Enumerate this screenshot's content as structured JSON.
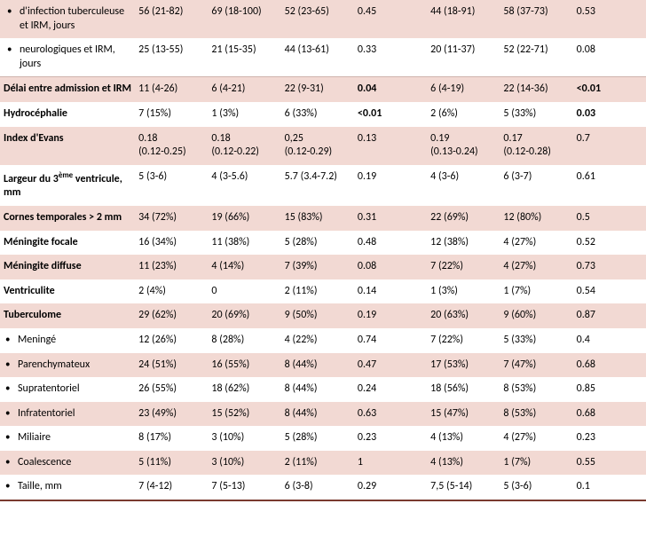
{
  "rows": [
    {
      "label": "d'infection tuberculeuse et IRM, jours",
      "bullet": true,
      "sub": true,
      "bold": false,
      "bg": "peach",
      "cells": [
        "56 (21-82)",
        "69 (18-100)",
        "52 (23-65)",
        "0.45",
        "44 (18-91)",
        "58 (37-73)",
        "0.53"
      ],
      "boldCells": []
    },
    {
      "label": "neurologiques et IRM, jours",
      "bullet": true,
      "sub": true,
      "bold": false,
      "bg": "white",
      "cells": [
        "25 (13-55)",
        "21 (15-35)",
        "44 (13-61)",
        "0.33",
        "20 (11-37)",
        "52 (22-71)",
        "0.08"
      ],
      "boldCells": []
    },
    {
      "label": "Délai entre admission et IRM",
      "bullet": false,
      "sub": false,
      "bold": true,
      "bg": "peach",
      "cells": [
        "11 (4-26)",
        "6 (4-21)",
        "22 (9-31)",
        "0.04",
        "6 (4-19)",
        "22 (14-36)",
        "<0.01"
      ],
      "boldCells": [
        3,
        6
      ],
      "sep": true
    },
    {
      "label": "Hydrocéphalie",
      "bullet": false,
      "sub": false,
      "bold": true,
      "bg": "white",
      "cells": [
        "7 (15%)",
        "1 (3%)",
        "6 (33%)",
        "<0.01",
        "2 (6%)",
        "5 (33%)",
        "0.03"
      ],
      "boldCells": [
        3,
        6
      ]
    },
    {
      "label": "Index d'Evans",
      "bullet": false,
      "sub": false,
      "bold": true,
      "bg": "peach",
      "cells": [
        "0.18\n(0.12-0.25)",
        "0.18\n(0.12-0.22)",
        "0,25\n(0.12-0.29)",
        "0.13",
        "0.19\n(0.13-0.24)",
        "0.17\n(0.12-0.28)",
        "0.7"
      ],
      "boldCells": []
    },
    {
      "label": "Largeur du 3^ème^ ventricule, mm",
      "bullet": false,
      "sub": false,
      "bold": true,
      "bg": "white",
      "cells": [
        "5 (3-6)",
        "4 (3-5.6)",
        "5.7 (3.4-7.2)",
        "0.19",
        "4 (3-6)",
        "6 (3-7)",
        "0.61"
      ],
      "boldCells": []
    },
    {
      "label": "Cornes temporales > 2 mm",
      "bullet": false,
      "sub": false,
      "bold": true,
      "bg": "peach",
      "cells": [
        "34 (72%)",
        "19 (66%)",
        "15 (83%)",
        "0.31",
        "22 (69%)",
        "12 (80%)",
        "0.5"
      ],
      "boldCells": []
    },
    {
      "label": "Méningite focale",
      "bullet": false,
      "sub": false,
      "bold": true,
      "bg": "white",
      "cells": [
        "16 (34%)",
        "11 (38%)",
        "5 (28%)",
        "0.48",
        "12 (38%)",
        "4 (27%)",
        "0.52"
      ],
      "boldCells": []
    },
    {
      "label": "Méningite diffuse",
      "bullet": false,
      "sub": false,
      "bold": true,
      "bg": "peach",
      "cells": [
        "11 (23%)",
        "4 (14%)",
        "7 (39%)",
        "0.08",
        "7 (22%)",
        "4 (27%)",
        "0.73"
      ],
      "boldCells": []
    },
    {
      "label": "Ventriculite",
      "bullet": false,
      "sub": false,
      "bold": true,
      "bg": "white",
      "cells": [
        "2 (4%)",
        "0",
        "2 (11%)",
        "0.14",
        "1 (3%)",
        "1 (7%)",
        "0.54"
      ],
      "boldCells": []
    },
    {
      "label": "Tuberculome",
      "bullet": false,
      "sub": false,
      "bold": true,
      "bg": "peach",
      "cells": [
        "29 (62%)",
        "20 (69%)",
        "9 (50%)",
        "0.19",
        "20 (63%)",
        "9 (60%)",
        "0.87"
      ],
      "boldCells": []
    },
    {
      "label": "Meningé",
      "bullet": true,
      "sub": false,
      "bold": false,
      "bg": "white",
      "cells": [
        "12 (26%)",
        "8 (28%)",
        "4 (22%)",
        "0.74",
        "7 (22%)",
        "5 (33%)",
        "0.4"
      ],
      "boldCells": []
    },
    {
      "label": "Parenchymateux",
      "bullet": true,
      "sub": false,
      "bold": false,
      "bg": "peach",
      "cells": [
        "24 (51%)",
        "16 (55%)",
        "8 (44%)",
        "0.47",
        "17 (53%)",
        "7 (47%)",
        "0.68"
      ],
      "boldCells": []
    },
    {
      "label": "Supratentoriel",
      "bullet": true,
      "sub": false,
      "bold": false,
      "bg": "white",
      "cells": [
        "26 (55%)",
        "18 (62%)",
        "8 (44%)",
        "0.24",
        "18 (56%)",
        "8 (53%)",
        "0.85"
      ],
      "boldCells": []
    },
    {
      "label": "Infratentoriel",
      "bullet": true,
      "sub": false,
      "bold": false,
      "bg": "peach",
      "cells": [
        "23 (49%)",
        "15 (52%)",
        "8 (44%)",
        "0.63",
        "15 (47%)",
        "8 (53%)",
        "0.68"
      ],
      "boldCells": []
    },
    {
      "label": "Miliaire",
      "bullet": true,
      "sub": false,
      "bold": false,
      "bg": "white",
      "cells": [
        "8 (17%)",
        "3 (10%)",
        "5 (28%)",
        "0.23",
        "4 (13%)",
        "4 (27%)",
        "0.23"
      ],
      "boldCells": []
    },
    {
      "label": "Coalescence",
      "bullet": true,
      "sub": false,
      "bold": false,
      "bg": "peach",
      "cells": [
        "5 (11%)",
        "3 (10%)",
        "2 (11%)",
        "1",
        "4 (13%)",
        "1 (7%)",
        "0.55"
      ],
      "boldCells": []
    },
    {
      "label": "Taille, mm",
      "bullet": true,
      "sub": false,
      "bold": false,
      "bg": "white",
      "cells": [
        "7 (4-12)",
        "7 (5-13)",
        "6 (3-8)",
        "0.29",
        "7,5 (5-14)",
        "5 (3-6)",
        "0.1"
      ],
      "boldCells": [],
      "bottom": true
    }
  ],
  "colors": {
    "peach": "#f2d9d3",
    "white": "#ffffff",
    "bottom_border": "#7a3a2e"
  }
}
